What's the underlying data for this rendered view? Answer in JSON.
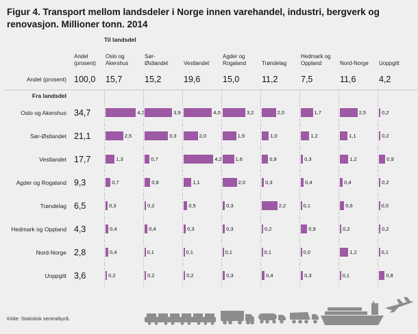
{
  "title": "Figur 4. Transport mellom landsdeler i Norge innen varehandel, industri, bergverk og renovasjon. Millioner tonn. 2014",
  "source": "Kilde: Statistisk sentralbyrå.",
  "colors": {
    "bar": "#9d59a4",
    "background": "#efefef",
    "silhouette": "#8d8d8d",
    "grid_line": "#c6c6c6"
  },
  "chart_data": {
    "type": "table",
    "title": "Transport mellom landsdeler i Norge innen varehandel, industri, bergverk og renovasjon",
    "unit": "Millioner tonn",
    "year": "2014",
    "col_group_label": "Til landsdel",
    "row_group_label": "Fra landsdel",
    "share_header_line1": "Andel",
    "share_header_line2": "(prosent)",
    "share_row_label": "Andel (prosent)",
    "total_share": "100,0",
    "columns": [
      {
        "lines": [
          "Oslo og",
          "Akershus"
        ]
      },
      {
        "lines": [
          "Sør-",
          "Østlandet"
        ]
      },
      {
        "lines": [
          "Vestlandet"
        ]
      },
      {
        "lines": [
          "Agder og",
          "Rogaland"
        ]
      },
      {
        "lines": [
          "Trøndelag"
        ]
      },
      {
        "lines": [
          "Hedmark og",
          "Oppland"
        ]
      },
      {
        "lines": [
          "Nord-Norge"
        ]
      },
      {
        "lines": [
          "Uoppgitt"
        ]
      }
    ],
    "column_shares": [
      "15,7",
      "15,2",
      "19,6",
      "15,0",
      "11,2",
      "7,5",
      "11,6",
      "4,2"
    ],
    "rows": [
      {
        "label": "Oslo og Akershus",
        "share": "34,7",
        "values": [
          "4,3",
          "3,9",
          "4,0",
          "3,2",
          "2,0",
          "1,7",
          "2,5",
          "0,2"
        ]
      },
      {
        "label": "Sør-Østlandet",
        "share": "21,1",
        "values": [
          "2,5",
          "3,3",
          "2,0",
          "1,9",
          "1,0",
          "1,2",
          "1,1",
          "0,2"
        ]
      },
      {
        "label": "Vestlandet",
        "share": "17,7",
        "values": [
          "1,3",
          "0,7",
          "4,2",
          "1,6",
          "0,9",
          "0,3",
          "1,2",
          "0,9"
        ]
      },
      {
        "label": "Agder og Rogaland",
        "share": "9,3",
        "values": [
          "0,7",
          "0,8",
          "1,1",
          "2,0",
          "0,3",
          "0,4",
          "0,4",
          "0,2"
        ]
      },
      {
        "label": "Trøndelag",
        "share": "6,5",
        "values": [
          "0,3",
          "0,2",
          "0,5",
          "0,3",
          "2,2",
          "0,1",
          "0,6",
          "0,0"
        ]
      },
      {
        "label": "Hedmark og Oppland",
        "share": "4,3",
        "values": [
          "0,4",
          "0,4",
          "0,3",
          "0,3",
          "0,2",
          "0,9",
          "0,2",
          "0,2"
        ]
      },
      {
        "label": "Nord-Norge",
        "share": "2,8",
        "values": [
          "0,4",
          "0,1",
          "0,1",
          "0,1",
          "0,1",
          "0,0",
          "1,2",
          "0,1"
        ]
      },
      {
        "label": "Uoppgitt",
        "share": "3,6",
        "values": [
          "0,2",
          "0,2",
          "0,2",
          "0,3",
          "0,4",
          "0,3",
          "0,1",
          "0,8"
        ]
      }
    ],
    "bar_scale_max": 4.3
  }
}
